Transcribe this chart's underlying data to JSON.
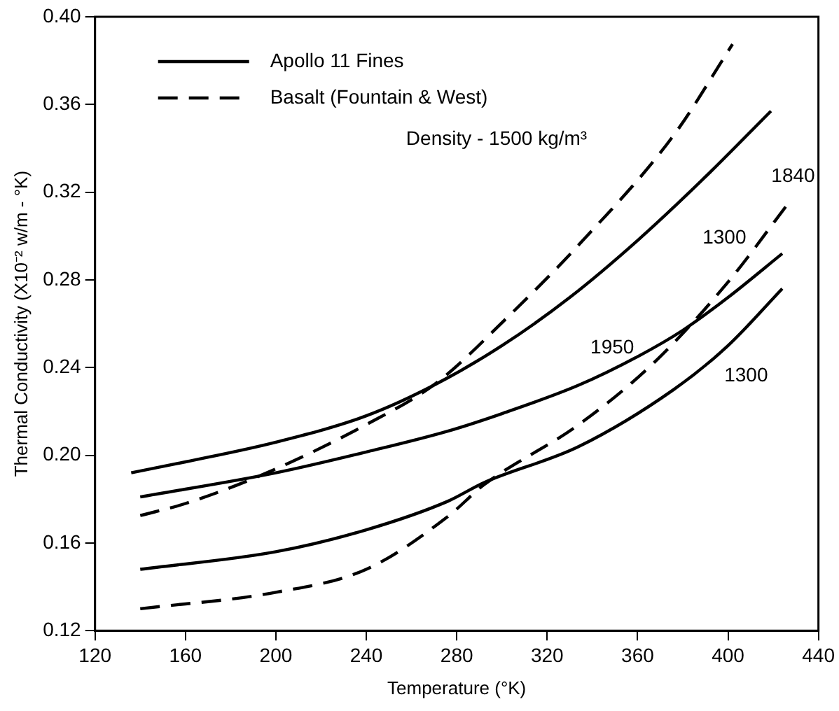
{
  "chart_data": {
    "type": "line",
    "xlabel": "Temperature (°K)",
    "ylabel": "Thermal Conductivity (X10⁻² w/m - °K)",
    "xlim": [
      120,
      440
    ],
    "xticks": [
      120,
      160,
      200,
      240,
      280,
      320,
      360,
      400,
      440
    ],
    "ylim": [
      0.12,
      0.4
    ],
    "yticks": [
      {
        "value": 0.12,
        "label": "0.12"
      },
      {
        "value": 0.16,
        "label": "0.16"
      },
      {
        "value": 0.2,
        "label": "0.20"
      },
      {
        "value": 0.24,
        "label": "0.24"
      },
      {
        "value": 0.28,
        "label": "0.28"
      },
      {
        "value": 0.32,
        "label": "0.32"
      },
      {
        "value": 0.36,
        "label": "0.36"
      },
      {
        "value": 0.4,
        "label": "0.40"
      }
    ],
    "grid": false,
    "legend": "top left",
    "marker": "none",
    "series": [
      {
        "name": "Apollo 11 Fines",
        "color": "#000000",
        "line_style": "solid",
        "x": [
          136,
          160,
          200,
          240,
          270,
          300,
          330,
          360,
          390,
          419
        ],
        "values": [
          0.192,
          0.197,
          0.206,
          0.218,
          0.232,
          0.25,
          0.272,
          0.298,
          0.327,
          0.357
        ]
      },
      {
        "name": "Basalt (Fountain & West)",
        "color": "#000000",
        "line_style": "dashed",
        "x": [
          140,
          160,
          196,
          240,
          271,
          302,
          334,
          376,
          402
        ],
        "values": [
          0.1725,
          0.178,
          0.192,
          0.214,
          0.233,
          0.2625,
          0.296,
          0.346,
          0.3875
        ]
      },
      {
        "color": "#000000",
        "line_style": "solid",
        "x": [
          140,
          200,
          240,
          276,
          300,
          334,
          360,
          380,
          400,
          424
        ],
        "values": [
          0.181,
          0.192,
          0.2015,
          0.211,
          0.219,
          0.232,
          0.245,
          0.257,
          0.272,
          0.292
        ]
      },
      {
        "color": "#000000",
        "line_style": "solid",
        "x": [
          140,
          200,
          240,
          276,
          292,
          334,
          376,
          400,
          424
        ],
        "values": [
          0.148,
          0.156,
          0.166,
          0.179,
          0.1875,
          0.204,
          0.23,
          0.25,
          0.276
        ]
      },
      {
        "color": "#000000",
        "line_style": "dashed",
        "x": [
          140,
          200,
          240,
          276,
          292,
          334,
          367,
          400,
          426
        ],
        "values": [
          0.13,
          0.1375,
          0.148,
          0.172,
          0.1865,
          0.214,
          0.242,
          0.279,
          0.314
        ]
      }
    ],
    "annotations": [
      "Density - 1500 kg/m³",
      "1840",
      "1300",
      "1950",
      "1300"
    ]
  }
}
